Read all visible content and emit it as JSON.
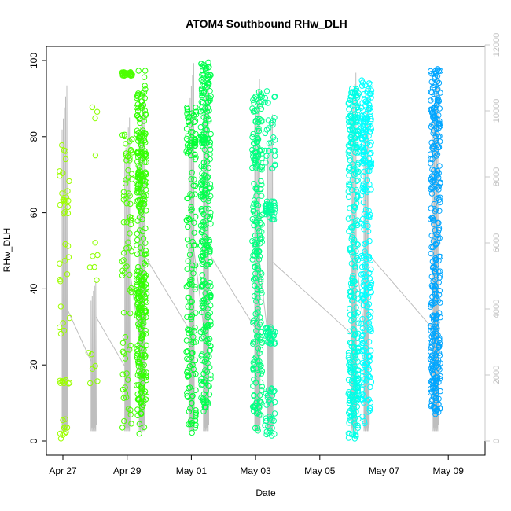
{
  "chart_data": {
    "type": "scatter",
    "title": "ATOM4 Southbound RHw_DLH",
    "xlabel": "Date",
    "ylabel": "RHw_DLH",
    "x_ticks": [
      "Apr 27",
      "Apr 29",
      "May 01",
      "May 03",
      "May 05",
      "May 07",
      "May 09"
    ],
    "y_ticks": [
      "0",
      "20",
      "40",
      "60",
      "80",
      "100"
    ],
    "y_right_ticks": [
      "0",
      "2000",
      "4000",
      "6000",
      "8000",
      "10000",
      "12000"
    ],
    "xlim_days": [
      "Apr 26 12:00",
      "May 10 00:00"
    ],
    "ylim": [
      0,
      100
    ],
    "y_right_lim": [
      0,
      12000
    ],
    "legend": "none",
    "grid": false,
    "point_style": "open circles colored by time (yellow-green to blue)",
    "clusters": [
      {
        "date": "Apr 27",
        "day": 0.05,
        "n": 55,
        "ranges": [
          [
            0.5,
            6
          ],
          [
            15,
            16
          ],
          [
            28,
            36
          ],
          [
            40,
            56
          ],
          [
            58,
            66
          ],
          [
            68,
            78
          ]
        ],
        "color": "#9dff00"
      },
      {
        "date": "Apr 28",
        "day": 0.95,
        "n": 16,
        "ranges": [
          [
            15,
            25
          ],
          [
            42,
            54
          ],
          [
            74,
            89
          ]
        ],
        "color": "#8cff00"
      },
      {
        "date": "Apr 29",
        "day": 2.0,
        "n": 110,
        "ranges": [
          [
            2,
            36
          ],
          [
            38,
            60
          ],
          [
            62,
            81
          ],
          [
            96,
            97
          ]
        ],
        "color": "#4dff00"
      },
      {
        "date": "Apr 29-30",
        "day": 2.45,
        "n": 320,
        "ranges": [
          [
            0.5,
            99
          ],
          [
            10,
            45
          ],
          [
            60,
            92
          ]
        ],
        "color": "#33ff00"
      },
      {
        "date": "May 01",
        "day": 4.0,
        "n": 160,
        "ranges": [
          [
            2,
            30
          ],
          [
            31,
            72
          ],
          [
            74,
            88
          ]
        ],
        "color": "#00ff33"
      },
      {
        "date": "May 01-02",
        "day": 4.45,
        "n": 290,
        "ranges": [
          [
            7,
            44
          ],
          [
            45,
            80
          ],
          [
            78,
            100
          ]
        ],
        "color": "#00ff4d"
      },
      {
        "date": "May 03",
        "day": 6.05,
        "n": 230,
        "ranges": [
          [
            2,
            35
          ],
          [
            36,
            70
          ],
          [
            71,
            92
          ]
        ],
        "color": "#00ff80"
      },
      {
        "date": "May 03-04",
        "day": 6.45,
        "n": 130,
        "ranges": [
          [
            1,
            14
          ],
          [
            25,
            30
          ],
          [
            58,
            63
          ],
          [
            70,
            92
          ]
        ],
        "color": "#00ff99"
      },
      {
        "date": "May 06",
        "day": 9.05,
        "n": 320,
        "ranges": [
          [
            0.5,
            30
          ],
          [
            30,
            70
          ],
          [
            70,
            93
          ]
        ],
        "color": "#00ffe6"
      },
      {
        "date": "May 06-07",
        "day": 9.45,
        "n": 260,
        "ranges": [
          [
            4,
            40
          ],
          [
            40,
            75
          ],
          [
            75,
            95
          ]
        ],
        "color": "#00ffff"
      },
      {
        "date": "May 09",
        "day": 11.6,
        "n": 330,
        "ranges": [
          [
            7,
            35
          ],
          [
            35,
            75
          ],
          [
            75,
            98
          ]
        ],
        "color": "#00a6ff"
      }
    ],
    "secondary_line": {
      "description": "gray line on right axis (0-12000)",
      "color": "#bebebe",
      "segments": [
        {
          "day": 0.05,
          "low": 300,
          "high": 11100
        },
        {
          "day": 0.95,
          "low": 300,
          "high": 5000
        },
        {
          "day": 2.0,
          "low": 300,
          "high": 10100
        },
        {
          "day": 2.45,
          "low": 300,
          "high": 10800
        },
        {
          "day": 4.0,
          "low": 300,
          "high": 11800
        },
        {
          "day": 4.45,
          "low": 300,
          "high": 11600
        },
        {
          "day": 6.05,
          "low": 300,
          "high": 11300
        },
        {
          "day": 6.45,
          "low": 300,
          "high": 10200
        },
        {
          "day": 9.05,
          "low": 300,
          "high": 11500
        },
        {
          "day": 9.45,
          "low": 300,
          "high": 11100
        },
        {
          "day": 11.6,
          "low": 300,
          "high": 11500
        }
      ]
    }
  }
}
